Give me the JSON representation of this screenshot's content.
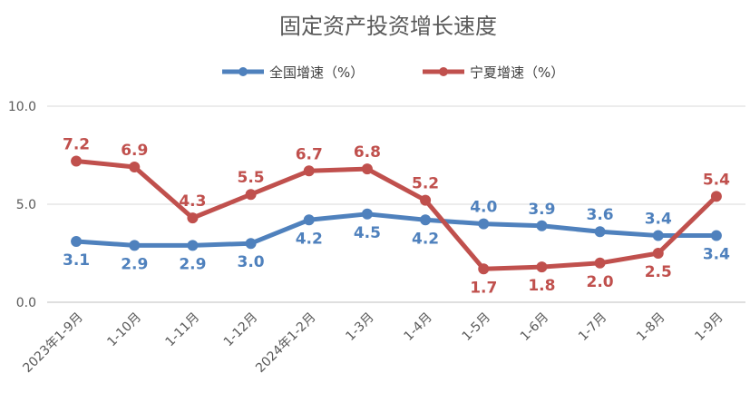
{
  "chart_data": {
    "type": "line",
    "title": "固定资产投资增长速度",
    "categories": [
      "2023年1-9月",
      "1-10月",
      "1-11月",
      "1-12月",
      "2024年1-2月",
      "1-3月",
      "1-4月",
      "1-5月",
      "1-6月",
      "1-7月",
      "1-8月",
      "1-9月"
    ],
    "series": [
      {
        "name": "全国增速（%）",
        "color": "#4f81bd",
        "values": [
          3.1,
          2.9,
          2.9,
          3.0,
          4.2,
          4.5,
          4.2,
          4.0,
          3.9,
          3.6,
          3.4,
          3.4
        ],
        "labels": [
          "3.1",
          "2.9",
          "2.9",
          "3.0",
          "4.2",
          "4.5",
          "4.2",
          "4.0",
          "3.9",
          "3.6",
          "3.4",
          "3.4"
        ]
      },
      {
        "name": "宁夏增速（%）",
        "color": "#c0504d",
        "values": [
          7.2,
          6.9,
          4.3,
          5.5,
          6.7,
          6.8,
          5.2,
          1.7,
          1.8,
          2.0,
          2.5,
          5.4
        ],
        "labels": [
          "7.2",
          "6.9",
          "4.3",
          "5.5",
          "6.7",
          "6.8",
          "5.2",
          "1.7",
          "1.8",
          "2.0",
          "2.5",
          "5.4"
        ]
      }
    ],
    "yticks": [
      "0.0",
      "5.0",
      "10.0"
    ],
    "ytick_values": [
      0,
      5,
      10
    ],
    "ylim": [
      0,
      10
    ],
    "grid": "horizontal",
    "legend_position": "top"
  }
}
